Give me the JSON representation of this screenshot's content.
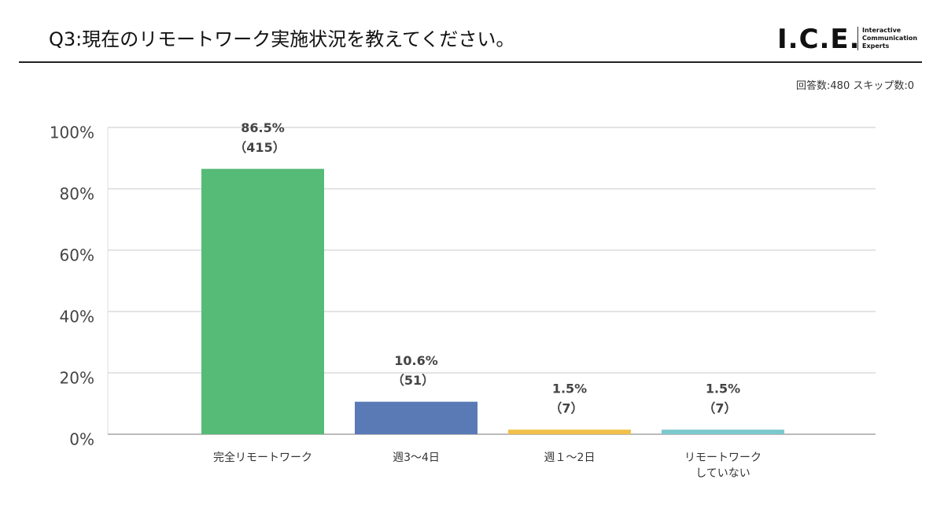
{
  "header": {
    "title": "Q3:現在のリモートワーク実施状況を教えてください。",
    "logo": "I.C.E.",
    "logo_lines": [
      "Interactive",
      "Communication",
      "Experts"
    ],
    "note": "回答数:480 スキップ数:0"
  },
  "chart_data": {
    "type": "bar",
    "categories": [
      "完全リモートワーク",
      "週3～4日",
      "週１～2日",
      "リモートワーク\nしていない"
    ],
    "values": [
      86.5,
      10.6,
      1.5,
      1.5
    ],
    "value_labels": [
      "86.5%",
      "10.6%",
      "1.5%",
      "1.5%"
    ],
    "count_labels": [
      "（415）",
      "（51）",
      "（7）",
      "（7）"
    ],
    "colors": [
      "#55bb77",
      "#5a7ab5",
      "#f0c04a",
      "#7cc8cc"
    ],
    "ylim": [
      0,
      100
    ],
    "yticks": [
      {
        "value": 0,
        "label": "0%"
      },
      {
        "value": 20,
        "label": "20%"
      },
      {
        "value": 40,
        "label": "40%"
      },
      {
        "value": 60,
        "label": "60%"
      },
      {
        "value": 80,
        "label": "80%"
      },
      {
        "value": 100,
        "label": "100%"
      }
    ],
    "grid": true
  }
}
